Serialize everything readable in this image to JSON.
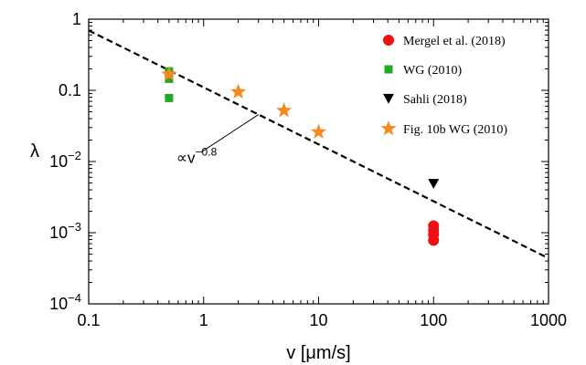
{
  "chart_data": {
    "type": "scatter",
    "xscale": "log",
    "yscale": "log",
    "xlim": [
      0.1,
      1000
    ],
    "ylim": [
      0.0001,
      1
    ],
    "xlabel": "v [μm/s]",
    "ylabel": "λ",
    "xticks": [
      {
        "value": 0.1,
        "label": "0.1"
      },
      {
        "value": 1,
        "label": "1"
      },
      {
        "value": 10,
        "label": "10"
      },
      {
        "value": 100,
        "label": "100"
      },
      {
        "value": 1000,
        "label": "1000"
      }
    ],
    "yticks": [
      {
        "value": 0.0001,
        "base": "10",
        "exp": "−4"
      },
      {
        "value": 0.001,
        "base": "10",
        "exp": "−3"
      },
      {
        "value": 0.01,
        "base": "10",
        "exp": "−2"
      },
      {
        "value": 0.1,
        "base": "0.1",
        "exp": ""
      },
      {
        "value": 1,
        "base": "1",
        "exp": ""
      }
    ],
    "legend_position": "top-right",
    "series": [
      {
        "name": "Mergel et al. (2018)",
        "marker": "circle",
        "color": "#ee1111",
        "points": [
          [
            100,
            0.00125
          ],
          [
            100,
            0.00108
          ],
          [
            100,
            0.00094
          ],
          [
            100,
            0.00078
          ]
        ]
      },
      {
        "name": "WG (2010)",
        "marker": "square",
        "color": "#22aa22",
        "points": [
          [
            0.5,
            0.185
          ],
          [
            0.5,
            0.145
          ],
          [
            0.5,
            0.078
          ]
        ]
      },
      {
        "name": "Sahli (2018)",
        "marker": "triangle-down",
        "color": "#000000",
        "points": [
          [
            100,
            0.0049
          ]
        ]
      },
      {
        "name": "Fig. 10b WG (2010)",
        "marker": "star",
        "color": "#f5891f",
        "points": [
          [
            0.5,
            0.168
          ],
          [
            2,
            0.095
          ],
          [
            5,
            0.052
          ],
          [
            10,
            0.026
          ]
        ]
      }
    ],
    "fit_line": {
      "label_base": "∝v",
      "label_exp": "−0.8",
      "exponent": -0.8,
      "coefficient": 0.11,
      "x_range": [
        0.1,
        1000
      ],
      "style": "dashed"
    }
  }
}
